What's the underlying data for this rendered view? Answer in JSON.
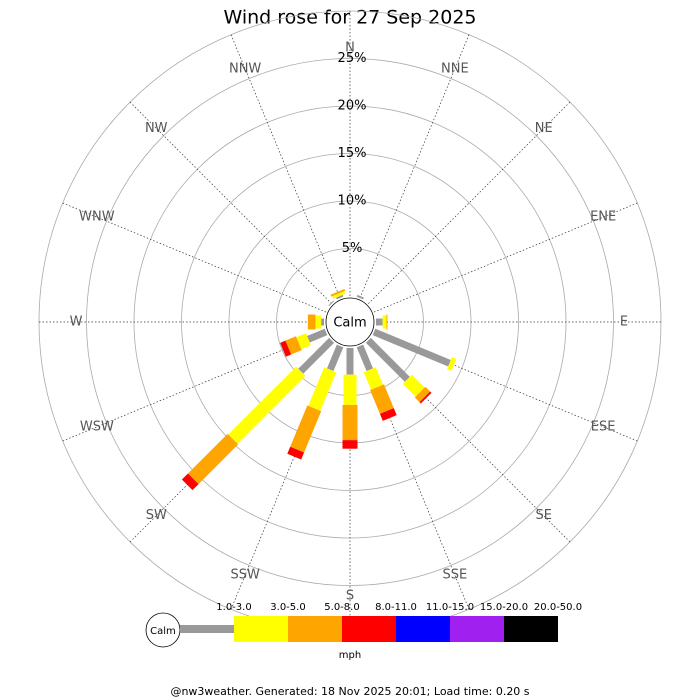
{
  "chart_data": {
    "type": "wind_rose",
    "title": "Wind rose for 27 Sep 2025",
    "categories": [
      "N",
      "NNE",
      "NE",
      "ENE",
      "E",
      "ESE",
      "SE",
      "SSE",
      "S",
      "SSW",
      "SW",
      "WSW",
      "W",
      "WNW",
      "NW",
      "NNW"
    ],
    "center_label": "Calm",
    "rlim": [
      0,
      30
    ],
    "rticks": [
      {
        "value": 5,
        "label": "5%"
      },
      {
        "value": 10,
        "label": "10%"
      },
      {
        "value": 15,
        "label": "15%"
      },
      {
        "value": 20,
        "label": "20%"
      },
      {
        "value": 25,
        "label": "25%"
      }
    ],
    "series": [
      {
        "name": "1.0-3.0",
        "color": "#999999",
        "values": [
          0,
          0.2,
          0,
          0,
          0.7,
          8.6,
          5.8,
          2.7,
          2.8,
          2.7,
          4.6,
          2.0,
          0.3,
          0,
          0.1,
          0.2
        ]
      },
      {
        "name": "3.0-5.0",
        "color": "#ffff00",
        "values": [
          0,
          0,
          0,
          0,
          0.4,
          0.5,
          1.9,
          2.0,
          3.2,
          4.4,
          10.1,
          1.1,
          0.6,
          0,
          0,
          0.3
        ]
      },
      {
        "name": "5.0-8.0",
        "color": "#ffa500",
        "values": [
          0,
          0,
          0,
          0,
          0.1,
          0,
          0.7,
          2.7,
          3.7,
          4.7,
          5.9,
          1.2,
          0.8,
          0,
          0,
          0.2
        ]
      },
      {
        "name": "8.0-11.0",
        "color": "#ff0000",
        "values": [
          0,
          0,
          0,
          0,
          0,
          0,
          0.2,
          0.8,
          0.9,
          0.8,
          0.9,
          0.6,
          0,
          0,
          0,
          0
        ]
      },
      {
        "name": "11.0-15.0",
        "color": "#0000ff",
        "values": [
          0,
          0,
          0,
          0,
          0,
          0,
          0,
          0,
          0,
          0,
          0,
          0,
          0,
          0,
          0,
          0
        ]
      },
      {
        "name": "15.0-20.0",
        "color": "#a020f0",
        "values": [
          0,
          0,
          0,
          0,
          0,
          0,
          0,
          0,
          0,
          0,
          0,
          0,
          0,
          0,
          0,
          0
        ]
      },
      {
        "name": "20.0-50.0",
        "color": "#000000",
        "values": [
          0,
          0,
          0,
          0,
          0,
          0,
          0,
          0,
          0,
          0,
          0,
          0,
          0,
          0,
          0,
          0
        ]
      }
    ],
    "unit_label": "mph",
    "footer": "@nw3weather. Generated: 18 Nov 2025 20:01; Load time: 0.20 s"
  }
}
